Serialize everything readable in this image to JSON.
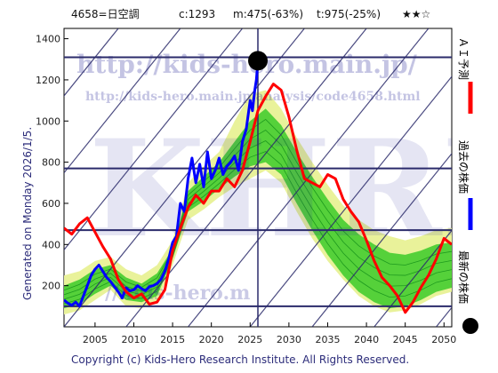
{
  "header": {
    "code": "4658=日空調",
    "current": "c:1293",
    "mid": "m:475(-63%)",
    "target": "t:975(-25%)",
    "stars": "★★☆"
  },
  "side_label": "Generated on Monday 2026/1/5.",
  "footer": "Copyright (c) Kids-Hero Research Institute. All Rights Reserved.",
  "watermarks": {
    "url_big": "http://kids-hero.main.jp/",
    "url_page": "http://kids-hero.main.jp/analysis/code4658.html",
    "logo": "KHRI",
    "url_low": "//kids-hero.m"
  },
  "legend": [
    {
      "label": "ＡＩ予測",
      "color": "#ff0000",
      "kind": "line"
    },
    {
      "label": "過去の株価",
      "color": "#0000ff",
      "kind": "line"
    },
    {
      "label": "最新の株価",
      "color": "#000000",
      "kind": "dot"
    }
  ],
  "colors": {
    "forecast": "#ff0000",
    "past": "#0000ff",
    "latest": "#000000",
    "band_outer": "#e9f29a",
    "band_inner": "#55d13a",
    "grid": "#2b2b6b"
  },
  "chart_data": {
    "type": "line",
    "xlim": [
      2001,
      2051
    ],
    "ylim": [
      0,
      1450
    ],
    "xticks": [
      2005,
      2010,
      2015,
      2020,
      2025,
      2030,
      2035,
      2040,
      2045,
      2050
    ],
    "yticks": [
      200,
      400,
      600,
      800,
      1000,
      1200,
      1400
    ],
    "hlines": [
      100,
      470,
      770,
      1310
    ],
    "vline": 2026,
    "series": [
      {
        "name": "過去の株価",
        "color": "#0000ff",
        "x": [
          2001,
          2001.5,
          2002,
          2002.5,
          2003,
          2003.5,
          2004,
          2004.5,
          2005,
          2005.5,
          2006,
          2006.5,
          2007,
          2007.5,
          2008,
          2008.5,
          2009,
          2009.5,
          2010,
          2010.5,
          2011,
          2011.5,
          2012,
          2012.5,
          2013,
          2013.5,
          2014,
          2014.5,
          2015,
          2015.5,
          2016,
          2016.5,
          2017,
          2017.5,
          2018,
          2018.5,
          2019,
          2019.5,
          2020,
          2020.5,
          2021,
          2021.5,
          2022,
          2022.5,
          2023,
          2023.5,
          2024,
          2024.5,
          2025,
          2025.3,
          2025.6,
          2025.8,
          2026
        ],
        "y": [
          130,
          115,
          105,
          120,
          100,
          150,
          200,
          250,
          280,
          300,
          270,
          240,
          220,
          195,
          170,
          140,
          190,
          175,
          180,
          200,
          185,
          175,
          195,
          200,
          210,
          230,
          270,
          330,
          410,
          440,
          600,
          560,
          720,
          820,
          700,
          790,
          680,
          850,
          720,
          760,
          820,
          740,
          780,
          800,
          830,
          760,
          900,
          960,
          1100,
          1050,
          1150,
          1200,
          1293
        ]
      },
      {
        "name": "ＡＩ予測",
        "color": "#ff0000",
        "x": [
          2001,
          2002,
          2003,
          2004,
          2005,
          2006,
          2007,
          2008,
          2009,
          2010,
          2011,
          2012,
          2013,
          2014,
          2015,
          2016,
          2017,
          2018,
          2019,
          2020,
          2021,
          2022,
          2023,
          2024,
          2025,
          2026,
          2027,
          2028,
          2029,
          2030,
          2031,
          2032,
          2033,
          2034,
          2035,
          2036,
          2037,
          2038,
          2039,
          2040,
          2041,
          2042,
          2043,
          2044,
          2045,
          2046,
          2047,
          2048,
          2049,
          2050,
          2051
        ],
        "y": [
          480,
          450,
          500,
          530,
          460,
          390,
          330,
          230,
          170,
          140,
          160,
          110,
          120,
          180,
          370,
          480,
          580,
          640,
          600,
          660,
          660,
          720,
          680,
          760,
          900,
          1050,
          1120,
          1180,
          1150,
          1020,
          860,
          720,
          700,
          680,
          740,
          720,
          620,
          560,
          510,
          420,
          320,
          240,
          200,
          150,
          70,
          120,
          190,
          250,
          330,
          430,
          400
        ]
      }
    ],
    "bands": {
      "x": [
        2001,
        2003,
        2005,
        2007,
        2009,
        2011,
        2013,
        2015,
        2017,
        2019,
        2021,
        2023,
        2025,
        2027,
        2029,
        2031,
        2033,
        2035,
        2037,
        2039,
        2041,
        2043,
        2045,
        2047,
        2049,
        2051
      ],
      "outer_low": [
        60,
        80,
        130,
        180,
        100,
        90,
        120,
        300,
        520,
        570,
        630,
        680,
        720,
        760,
        700,
        560,
        430,
        320,
        230,
        150,
        100,
        70,
        80,
        110,
        150,
        170
      ],
      "outer_high": [
        250,
        270,
        320,
        340,
        280,
        250,
        300,
        420,
        700,
        780,
        850,
        1000,
        1130,
        1150,
        1060,
        920,
        800,
        690,
        590,
        520,
        470,
        440,
        420,
        440,
        470,
        480
      ],
      "inner_low": [
        90,
        110,
        160,
        200,
        130,
        120,
        150,
        330,
        560,
        610,
        670,
        730,
        780,
        800,
        740,
        600,
        470,
        350,
        250,
        170,
        120,
        90,
        100,
        130,
        170,
        190
      ],
      "inner_high": [
        200,
        230,
        280,
        300,
        240,
        210,
        260,
        380,
        660,
        730,
        800,
        900,
        1000,
        1060,
        980,
        850,
        730,
        620,
        520,
        450,
        400,
        360,
        350,
        370,
        400,
        410
      ]
    }
  }
}
